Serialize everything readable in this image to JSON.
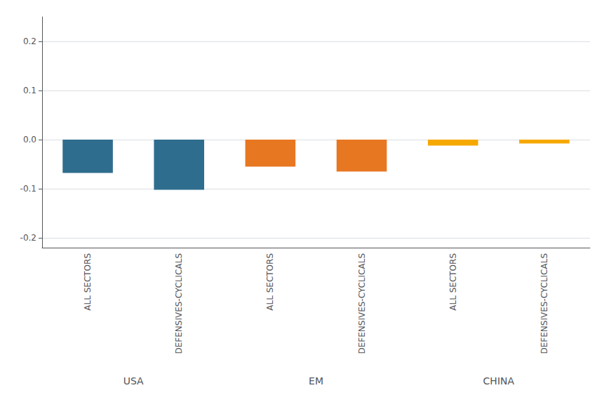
{
  "chart_data": {
    "type": "bar",
    "categories": [
      "ALL SECTORS",
      "DEFENSIVES-CYCLICALS"
    ],
    "series": [
      {
        "name": "USA",
        "color": "#2e6d8e",
        "values": [
          -0.068,
          -0.102
        ]
      },
      {
        "name": "EM",
        "color": "#e87722",
        "values": [
          -0.055,
          -0.065
        ]
      },
      {
        "name": "CHINA",
        "color": "#f5a800",
        "values": [
          -0.012,
          -0.008
        ]
      }
    ],
    "ylim": [
      -0.22,
      0.25
    ],
    "yticks": [
      -0.2,
      -0.1,
      {
        "value": 0,
        "label": "0.0"
      },
      0.1,
      0.2
    ],
    "grid": true
  }
}
